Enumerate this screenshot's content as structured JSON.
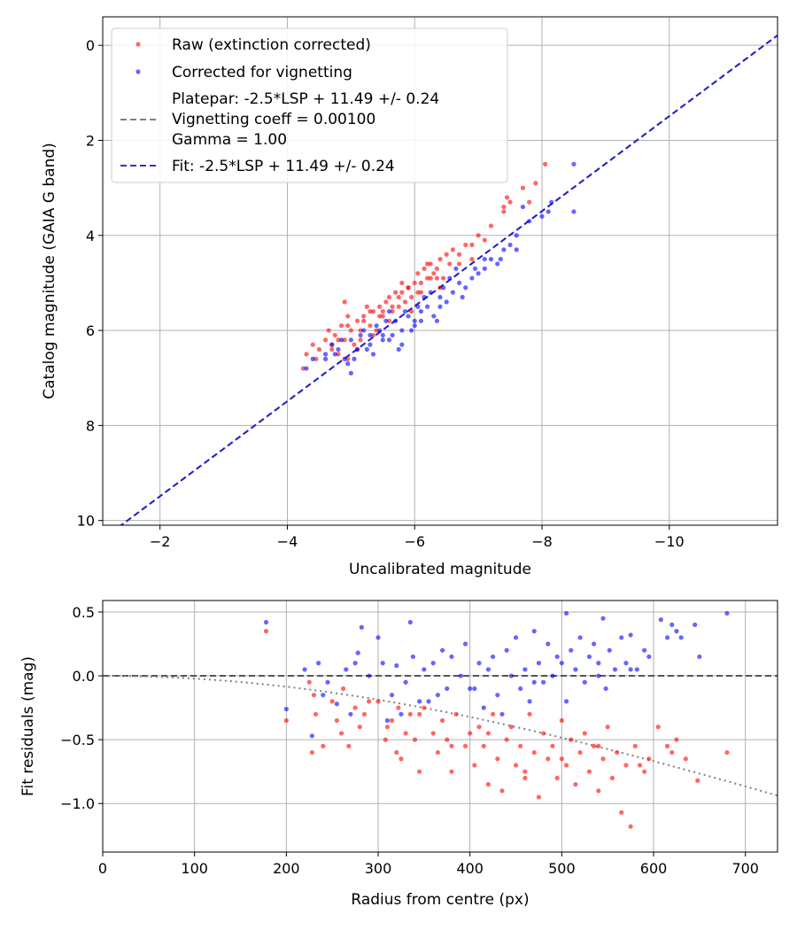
{
  "chart_data": [
    {
      "type": "scatter",
      "xlabel": "Uncalibrated magnitude",
      "ylabel": "Catalog magnitude (GAIA G band)",
      "xlim": [
        -1.1,
        -11.7
      ],
      "ylim": [
        10.1,
        -0.6
      ],
      "x_inverted": true,
      "y_inverted": true,
      "grid": true,
      "legend_placement": "top-left",
      "xticks": [
        -2,
        -4,
        -6,
        -8,
        -10
      ],
      "xtick_labels": [
        "−2",
        "−4",
        "−6",
        "−8",
        "−10"
      ],
      "yticks": [
        0,
        2,
        4,
        6,
        8,
        10
      ],
      "ytick_labels": [
        "0",
        "2",
        "4",
        "6",
        "8",
        "10"
      ],
      "legend": [
        {
          "label": "Raw (extinction corrected)",
          "kind": "marker",
          "color": "#ff0000"
        },
        {
          "label": "Corrected for vignetting",
          "kind": "marker",
          "color": "#0000ff"
        },
        {
          "label": "Platepar: -2.5*LSP + 11.49 +/- 0.24",
          "label2": "Vignetting coeff = 0.00100",
          "label3": "Gamma = 1.00",
          "kind": "line",
          "color": "#808080"
        },
        {
          "label": "Fit: -2.5*LSP + 11.49 +/- 0.24",
          "kind": "line",
          "color": "#3333cc"
        }
      ],
      "lines": [
        {
          "name": "Platepar: -2.5*LSP + 11.49 +/- 0.24",
          "slope": 1.0,
          "intercept": 11.49,
          "color": "#808080",
          "dash": "dashed"
        },
        {
          "name": "Fit: -2.5*LSP + 11.49 +/- 0.24",
          "slope": 1.0,
          "intercept": 11.49,
          "color": "#2222cc",
          "dash": "dashed"
        }
      ],
      "series": [
        {
          "name": "Raw (extinction corrected)",
          "color": "#ff0000",
          "x": [
            -4.25,
            -4.3,
            -4.4,
            -4.45,
            -4.6,
            -4.65,
            -4.7,
            -4.75,
            -4.8,
            -4.85,
            -4.9,
            -4.95,
            -5.0,
            -5.05,
            -5.1,
            -5.15,
            -5.2,
            -5.25,
            -5.3,
            -5.35,
            -5.4,
            -5.45,
            -5.5,
            -5.55,
            -5.6,
            -5.65,
            -5.7,
            -5.75,
            -5.8,
            -5.85,
            -5.9,
            -5.95,
            -6.0,
            -6.05,
            -6.1,
            -6.15,
            -6.2,
            -6.25,
            -6.3,
            -6.35,
            -6.4,
            -6.45,
            -6.5,
            -6.6,
            -6.7,
            -6.8,
            -6.9,
            -7.0,
            -7.2,
            -7.4,
            -7.5,
            -7.7,
            -7.9,
            -8.05,
            -4.7,
            -4.8,
            -4.95,
            -5.1,
            -5.2,
            -5.35,
            -5.5,
            -5.65,
            -5.8,
            -5.95,
            -6.1,
            -6.25,
            -6.4,
            -6.55,
            -6.7,
            -6.9,
            -7.1,
            -7.4,
            -7.45,
            -7.8,
            -4.5,
            -4.9,
            -5.3,
            -5.6,
            -5.9,
            -6.2,
            -4.95,
            -5.15,
            -5.45,
            -5.75,
            -6.05,
            -6.35
          ],
          "y": [
            6.8,
            6.5,
            6.3,
            6.6,
            6.2,
            6.0,
            6.3,
            6.1,
            6.5,
            5.9,
            6.2,
            5.7,
            6.0,
            6.3,
            5.8,
            6.0,
            5.7,
            5.5,
            5.9,
            5.6,
            6.0,
            5.5,
            5.7,
            5.4,
            5.3,
            5.6,
            5.2,
            5.5,
            5.0,
            5.4,
            5.1,
            5.3,
            5.0,
            4.8,
            5.2,
            4.7,
            4.9,
            4.6,
            4.8,
            4.7,
            4.5,
            4.9,
            4.4,
            4.3,
            4.6,
            4.2,
            4.5,
            4.0,
            3.8,
            3.5,
            3.3,
            3.0,
            2.9,
            2.5,
            6.4,
            6.2,
            5.9,
            6.4,
            5.8,
            6.1,
            5.6,
            5.5,
            5.2,
            5.6,
            5.0,
            4.9,
            5.1,
            4.6,
            4.4,
            4.2,
            4.1,
            3.4,
            3.2,
            3.3,
            6.4,
            5.4,
            5.6,
            5.8,
            5.1,
            4.6,
            6.6,
            6.2,
            5.7,
            5.3,
            5.2,
            4.9
          ]
        },
        {
          "name": "Corrected for vignetting",
          "color": "#0000ff",
          "x": [
            -4.3,
            -4.4,
            -4.6,
            -4.7,
            -4.8,
            -4.9,
            -5.0,
            -5.1,
            -5.2,
            -5.3,
            -5.4,
            -5.5,
            -5.6,
            -5.7,
            -5.8,
            -5.9,
            -6.0,
            -6.1,
            -6.2,
            -6.3,
            -6.4,
            -6.5,
            -6.6,
            -6.7,
            -6.8,
            -6.9,
            -7.0,
            -7.1,
            -7.2,
            -7.3,
            -7.4,
            -7.5,
            -7.6,
            -7.8,
            -8.0,
            -8.1,
            -8.5,
            -8.5,
            -4.75,
            -4.95,
            -5.15,
            -5.35,
            -5.55,
            -5.75,
            -5.95,
            -6.15,
            -6.35,
            -6.55,
            -6.75,
            -6.95,
            -7.35,
            -7.6,
            -5.0,
            -5.25,
            -5.45,
            -5.65,
            -5.85,
            -6.05,
            -6.25,
            -6.45,
            -6.65,
            -7.1,
            -4.85,
            -5.5,
            -5.8,
            -6.1,
            -6.4,
            -7.7,
            -8.15,
            -4.6,
            -5.05,
            -5.3,
            -5.6,
            -6.0
          ],
          "y": [
            6.8,
            6.6,
            6.5,
            6.3,
            6.4,
            6.6,
            6.2,
            6.4,
            6.0,
            6.3,
            5.9,
            6.1,
            6.2,
            5.8,
            6.0,
            5.7,
            5.9,
            5.6,
            5.5,
            5.7,
            5.3,
            5.4,
            5.2,
            5.0,
            5.1,
            4.9,
            4.8,
            4.7,
            4.5,
            4.6,
            4.3,
            4.2,
            4.0,
            3.7,
            3.6,
            3.5,
            3.5,
            2.5,
            6.5,
            6.7,
            6.1,
            6.5,
            5.8,
            6.4,
            6.0,
            5.3,
            5.8,
            4.9,
            5.3,
            4.7,
            4.5,
            4.3,
            6.9,
            6.4,
            6.0,
            6.1,
            5.6,
            5.5,
            5.2,
            5.1,
            4.7,
            4.5,
            6.2,
            6.2,
            6.3,
            5.8,
            5.5,
            3.4,
            3.3,
            6.6,
            6.6,
            6.1,
            5.6,
            5.8
          ]
        }
      ]
    },
    {
      "type": "scatter",
      "xlabel": "Radius from centre (px)",
      "ylabel": "Fit residuals (mag)",
      "xlim": [
        0,
        735
      ],
      "ylim": [
        -1.38,
        0.59
      ],
      "grid": true,
      "xticks": [
        0,
        100,
        200,
        300,
        400,
        500,
        600,
        700
      ],
      "xtick_labels": [
        "0",
        "100",
        "200",
        "300",
        "400",
        "500",
        "600",
        "700"
      ],
      "yticks": [
        0.5,
        0.0,
        -0.5,
        -1.0
      ],
      "ytick_labels": [
        "0.5",
        "0.0",
        "−0.5",
        "−1.0"
      ],
      "lines": [
        {
          "name": "zero",
          "y": 0.0,
          "color": "#555555",
          "dash": "dashed"
        },
        {
          "name": "vignetting",
          "model": "vignetting",
          "coeff": 0.001,
          "color": "#808080",
          "dash": "dotted"
        }
      ],
      "series": [
        {
          "name": "Raw (extinction corrected)",
          "color": "#ff0000",
          "x": [
            178,
            200,
            225,
            228,
            232,
            240,
            250,
            255,
            262,
            268,
            275,
            280,
            285,
            300,
            308,
            315,
            320,
            322,
            325,
            330,
            335,
            340,
            345,
            350,
            360,
            365,
            370,
            375,
            380,
            385,
            395,
            400,
            405,
            410,
            415,
            420,
            425,
            430,
            435,
            440,
            445,
            450,
            455,
            460,
            465,
            470,
            475,
            480,
            485,
            490,
            495,
            500,
            505,
            510,
            515,
            520,
            525,
            530,
            535,
            540,
            545,
            550,
            555,
            560,
            565,
            570,
            575,
            580,
            590,
            595,
            605,
            615,
            625,
            635,
            648,
            680,
            230,
            260,
            290,
            310,
            345,
            380,
            420,
            460,
            500,
            540,
            585,
            620
          ],
          "y": [
            0.35,
            -0.35,
            -0.05,
            -0.6,
            -0.3,
            -0.55,
            -0.2,
            -0.35,
            -0.1,
            -0.55,
            -0.25,
            -0.4,
            -0.3,
            -0.2,
            -0.5,
            -0.35,
            -0.6,
            -0.25,
            -0.65,
            -0.45,
            -0.3,
            -0.5,
            -0.75,
            -0.25,
            -0.45,
            -0.6,
            -0.35,
            -0.5,
            -0.75,
            -0.3,
            -0.55,
            -0.45,
            -0.7,
            -0.4,
            -0.55,
            -0.85,
            -0.3,
            -0.65,
            -0.9,
            -0.5,
            -0.4,
            -0.7,
            -0.55,
            -0.8,
            -0.3,
            -0.6,
            -0.95,
            -0.45,
            -0.65,
            -0.55,
            -0.8,
            -0.35,
            -0.7,
            -0.5,
            -0.85,
            -0.6,
            -0.45,
            -0.75,
            -0.55,
            -0.9,
            -0.65,
            -0.4,
            -0.8,
            -0.6,
            -1.07,
            -0.7,
            -1.18,
            -0.55,
            -0.75,
            -0.65,
            -0.4,
            -0.55,
            -0.5,
            -0.65,
            -0.82,
            -0.6,
            -0.15,
            -0.45,
            -0.2,
            -0.4,
            -0.3,
            -0.55,
            -0.45,
            -0.75,
            -0.65,
            -0.55,
            -0.7,
            -0.6
          ]
        },
        {
          "name": "Corrected for vignetting",
          "color": "#0000ff",
          "x": [
            178,
            200,
            220,
            228,
            235,
            245,
            255,
            265,
            270,
            278,
            282,
            290,
            300,
            305,
            315,
            320,
            325,
            330,
            335,
            338,
            345,
            350,
            360,
            365,
            370,
            375,
            380,
            390,
            395,
            405,
            410,
            415,
            420,
            425,
            430,
            440,
            445,
            450,
            455,
            460,
            465,
            470,
            475,
            480,
            485,
            490,
            495,
            500,
            505,
            510,
            515,
            520,
            525,
            530,
            535,
            540,
            545,
            548,
            552,
            558,
            565,
            570,
            575,
            582,
            590,
            595,
            608,
            615,
            620,
            625,
            630,
            645,
            650,
            680,
            240,
            275,
            310,
            355,
            400,
            435,
            470,
            505,
            540,
            575
          ],
          "y": [
            0.42,
            -0.26,
            0.05,
            -0.47,
            0.1,
            -0.05,
            -0.22,
            0.05,
            -0.3,
            0.18,
            0.38,
            0.0,
            0.3,
            0.1,
            -0.15,
            0.08,
            -0.3,
            -0.05,
            0.42,
            0.15,
            -0.2,
            0.05,
            0.1,
            -0.15,
            0.2,
            -0.1,
            0.15,
            0.0,
            0.25,
            -0.1,
            0.1,
            -0.25,
            0.05,
            0.15,
            -0.15,
            0.2,
            0.0,
            0.3,
            -0.1,
            0.05,
            -0.2,
            0.35,
            0.1,
            -0.05,
            0.25,
            0.0,
            0.15,
            0.1,
            0.49,
            0.2,
            0.05,
            0.3,
            -0.05,
            0.15,
            0.25,
            0.1,
            0.45,
            -0.1,
            0.2,
            0.05,
            0.3,
            0.1,
            0.32,
            0.05,
            0.2,
            0.15,
            0.44,
            0.3,
            0.4,
            0.35,
            0.3,
            0.4,
            0.15,
            0.49,
            -0.15,
            0.1,
            -0.35,
            -0.2,
            -0.1,
            -0.3,
            -0.05,
            -0.2,
            0.0,
            0.05
          ]
        }
      ]
    }
  ]
}
